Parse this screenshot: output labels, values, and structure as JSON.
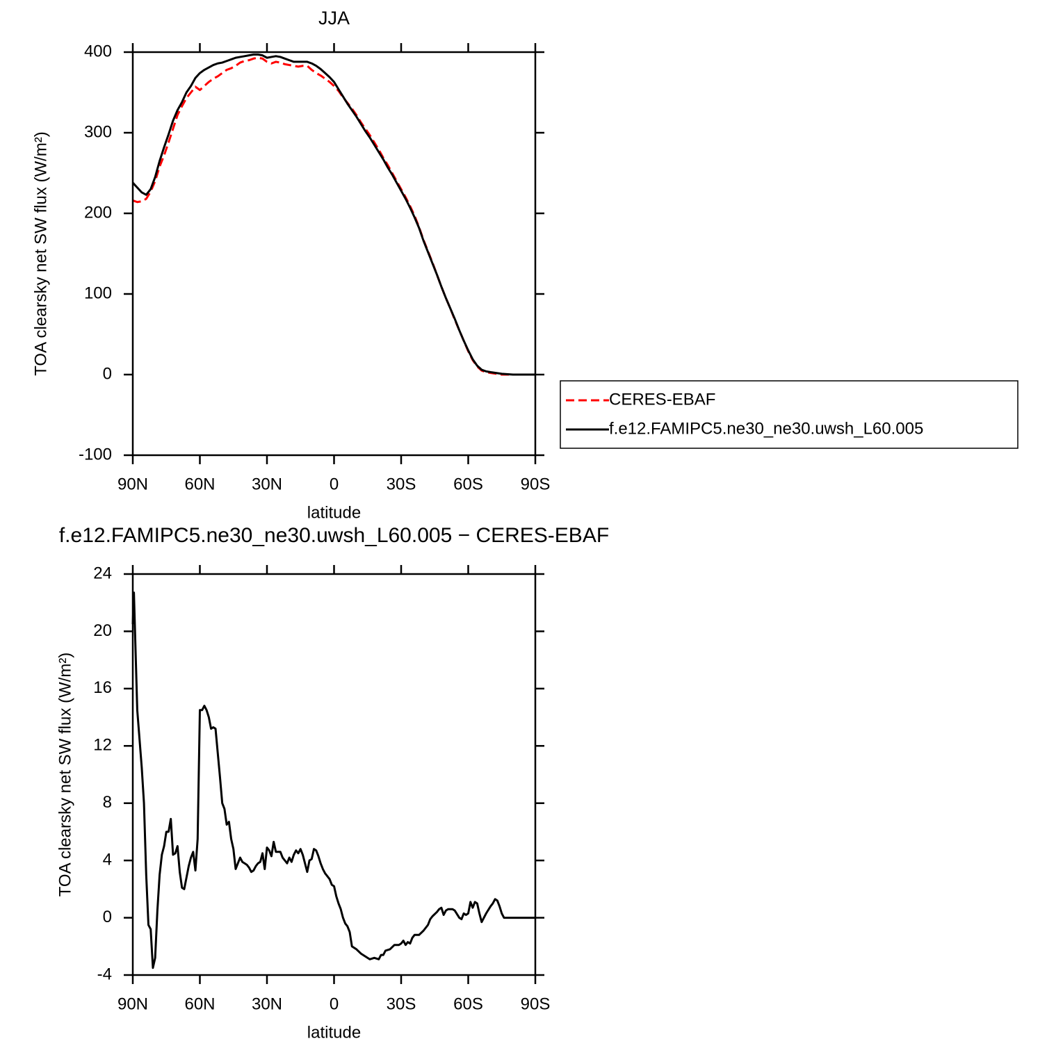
{
  "chart_data": [
    {
      "type": "line",
      "title": "JJA",
      "xlabel": "latitude",
      "ylabel": "TOA clearsky net SW flux (W/m²)",
      "xlim": [
        90,
        -90
      ],
      "xticks": [
        {
          "value": 90,
          "label": "90N"
        },
        {
          "value": 60,
          "label": "60N"
        },
        {
          "value": 30,
          "label": "30N"
        },
        0,
        {
          "value": -30,
          "label": "30S"
        },
        {
          "value": -60,
          "label": "60S"
        },
        {
          "value": -90,
          "label": "90S"
        }
      ],
      "ylim": [
        -100,
        400
      ],
      "yticks": [
        -100,
        0,
        100,
        200,
        300,
        400
      ],
      "legend": "right",
      "x": [
        90,
        88,
        86,
        84,
        82,
        80,
        78,
        76,
        74,
        72,
        70,
        68,
        66,
        64,
        62,
        60,
        58,
        56,
        54,
        52,
        50,
        48,
        46,
        44,
        42,
        40,
        38,
        36,
        34,
        32,
        30,
        28,
        26,
        24,
        22,
        20,
        18,
        16,
        14,
        12,
        10,
        8,
        6,
        4,
        2,
        0,
        -2,
        -4,
        -6,
        -8,
        -10,
        -12,
        -14,
        -16,
        -18,
        -20,
        -22,
        -24,
        -26,
        -28,
        -30,
        -32,
        -34,
        -36,
        -38,
        -40,
        -42,
        -44,
        -46,
        -48,
        -50,
        -52,
        -54,
        -56,
        -58,
        -60,
        -62,
        -64,
        -66,
        -68,
        -70,
        -75,
        -80,
        -85,
        -90
      ],
      "series": [
        {
          "name": "CERES-EBAF",
          "color": "#ff0000",
          "style": "dashed",
          "values": [
            216,
            214,
            215,
            218,
            227,
            240,
            258,
            272,
            288,
            305,
            322,
            333,
            343,
            350,
            357,
            353,
            358,
            363,
            367,
            370,
            374,
            378,
            380,
            383,
            387,
            389,
            390,
            392,
            393,
            392,
            388,
            386,
            388,
            387,
            385,
            384,
            383,
            382,
            383,
            383,
            378,
            374,
            371,
            367,
            363,
            358,
            352,
            344,
            337,
            330,
            322,
            313,
            305,
            297,
            288,
            279,
            269,
            260,
            250,
            240,
            230,
            220,
            209,
            197,
            183,
            167,
            153,
            139,
            124,
            109,
            95,
            82,
            68,
            55,
            42,
            29,
            18,
            10,
            5,
            3,
            2,
            0,
            0,
            0,
            0
          ]
        },
        {
          "name": "f.e12.FAMIPC5.ne30_ne30.uwsh_L60.005",
          "color": "#000000",
          "style": "solid",
          "values": [
            238,
            232,
            226,
            223,
            230,
            245,
            265,
            282,
            298,
            315,
            328,
            338,
            350,
            358,
            368,
            374,
            378,
            381,
            384,
            386,
            387,
            389,
            391,
            393,
            394,
            395,
            396,
            397,
            397,
            396,
            393,
            394,
            395,
            394,
            392,
            390,
            388,
            388,
            388,
            388,
            386,
            383,
            379,
            374,
            369,
            363,
            354,
            345,
            336,
            328,
            320,
            311,
            302,
            294,
            285,
            276,
            267,
            257,
            248,
            238,
            228,
            218,
            207,
            195,
            182,
            166,
            152,
            138,
            124,
            109,
            95,
            82,
            69,
            55,
            42,
            30,
            19,
            11,
            6,
            4,
            3,
            1,
            0,
            0,
            0
          ]
        }
      ]
    },
    {
      "type": "line",
      "title": "f.e12.FAMIPC5.ne30_ne30.uwsh_L60.005 − CERES-EBAF",
      "xlabel": "latitude",
      "ylabel": "TOA clearsky net SW flux (W/m²)",
      "xlim": [
        90,
        -90
      ],
      "xticks": [
        {
          "value": 90,
          "label": "90N"
        },
        {
          "value": 60,
          "label": "60N"
        },
        {
          "value": 30,
          "label": "30N"
        },
        0,
        {
          "value": -30,
          "label": "30S"
        },
        {
          "value": -60,
          "label": "60S"
        },
        {
          "value": -90,
          "label": "90S"
        }
      ],
      "ylim": [
        -4,
        24
      ],
      "yticks": [
        -4,
        0,
        4,
        8,
        12,
        16,
        20,
        24
      ],
      "x": [
        90,
        89.5,
        88,
        86,
        85,
        84,
        83,
        82,
        81,
        80,
        79,
        78,
        77,
        76,
        75,
        74,
        73,
        72,
        71,
        70,
        69,
        68,
        67,
        66,
        65,
        64,
        63,
        62,
        61,
        60,
        59,
        58,
        57,
        56,
        55,
        54,
        53,
        52,
        51,
        50,
        49,
        48,
        47,
        46,
        45,
        44,
        43,
        42,
        41,
        40,
        39,
        38,
        37,
        36,
        35,
        34,
        33,
        32,
        31,
        30,
        29,
        28,
        27,
        26,
        25,
        24,
        23,
        22,
        21,
        20,
        19,
        18,
        17,
        16,
        15,
        14,
        13,
        12,
        11,
        10,
        9,
        8,
        7,
        6,
        5,
        4,
        3,
        2,
        1,
        0,
        -1,
        -2,
        -3,
        -4,
        -5,
        -6,
        -7,
        -8,
        -10,
        -12,
        -14,
        -16,
        -18,
        -20,
        -21,
        -22,
        -23,
        -25,
        -27,
        -29,
        -30,
        -31,
        -32,
        -33,
        -34,
        -35,
        -36,
        -38,
        -40,
        -42,
        -43,
        -44,
        -46,
        -47,
        -48,
        -49,
        -50,
        -51,
        -53,
        -54,
        -56,
        -57,
        -58,
        -59,
        -60,
        -61,
        -62,
        -63,
        -64,
        -65,
        -66,
        -68,
        -70,
        -71,
        -72,
        -73,
        -74,
        -75,
        -76,
        -80,
        -85,
        -90
      ],
      "series": [
        {
          "color": "#000000",
          "style": "solid",
          "values": [
            20.5,
            22.7,
            14.5,
            10.5,
            8,
            3,
            -0.5,
            -0.8,
            -3.5,
            -2.8,
            0.5,
            3,
            4.4,
            5,
            6,
            6,
            6.9,
            4.4,
            4.5,
            5,
            3.2,
            2.1,
            2,
            2.8,
            3.6,
            4.2,
            4.6,
            3.3,
            5.5,
            14.5,
            14.5,
            14.8,
            14.5,
            14,
            13.2,
            13.3,
            13.2,
            11.5,
            9.8,
            8,
            7.6,
            6.5,
            6.7,
            5.5,
            4.8,
            3.4,
            3.8,
            4.2,
            3.9,
            3.8,
            3.7,
            3.5,
            3.2,
            3.3,
            3.6,
            3.8,
            3.9,
            4.5,
            3.4,
            4.9,
            4.7,
            4.3,
            5.3,
            4.6,
            4.6,
            4.6,
            4.2,
            4.0,
            3.8,
            4.2,
            3.9,
            4.4,
            4.7,
            4.5,
            4.8,
            4.4,
            3.8,
            3.2,
            4.0,
            4.1,
            4.8,
            4.7,
            4.3,
            3.8,
            3.4,
            3.1,
            2.9,
            2.7,
            2.3,
            2.2,
            1.5,
            1.0,
            0.6,
            0.0,
            -0.4,
            -0.6,
            -1.0,
            -2.0,
            -2.2,
            -2.5,
            -2.7,
            -2.9,
            -2.8,
            -2.9,
            -2.6,
            -2.6,
            -2.3,
            -2.2,
            -1.9,
            -1.9,
            -1.8,
            -1.6,
            -1.9,
            -1.7,
            -1.8,
            -1.4,
            -1.2,
            -1.2,
            -0.9,
            -0.5,
            -0.1,
            0.1,
            0.4,
            0.6,
            0.7,
            0.2,
            0.5,
            0.6,
            0.6,
            0.5,
            0,
            -0.1,
            0.3,
            0.2,
            0.3,
            1.1,
            0.7,
            1.1,
            1,
            0.3,
            -0.3,
            0.3,
            0.8,
            1.0,
            1.3,
            1.2,
            0.8,
            0.3,
            0,
            0,
            0,
            0
          ]
        }
      ]
    }
  ]
}
